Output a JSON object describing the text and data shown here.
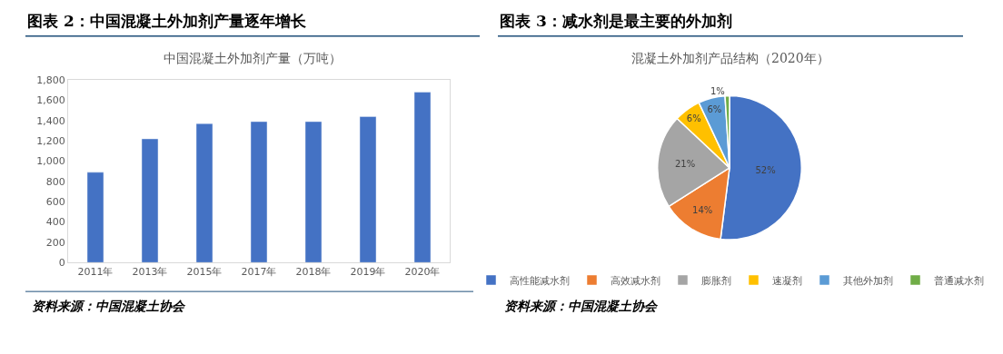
{
  "chart_data": [
    {
      "type": "bar",
      "title": "图表 2：中国混凝土外加剂产量逐年增长",
      "subtitle": "中国混凝土外加剂产量（万吨）",
      "categories": [
        "2011年",
        "2013年",
        "2015年",
        "2017年",
        "2018年",
        "2019年",
        "2020年"
      ],
      "values": [
        890,
        1220,
        1370,
        1390,
        1390,
        1440,
        1680
      ],
      "color": "#4472c4",
      "ylim": [
        0,
        1800
      ],
      "yticks": [
        0,
        200,
        400,
        600,
        800,
        {
          "value": 1000,
          "label": "1,000"
        },
        {
          "value": 1200,
          "label": "1,200"
        },
        {
          "value": 1400,
          "label": "1,400"
        },
        {
          "value": 1600,
          "label": "1,600"
        },
        {
          "value": 1800,
          "label": "1,800"
        }
      ],
      "legend": false,
      "annotations": [
        "资料来源：中国混凝土协会"
      ]
    },
    {
      "type": "pie",
      "title": "图表 3：减水剂是最主要的外加剂",
      "subtitle": "混凝土外加剂产品结构（2020年）",
      "categories": [
        "高性能减水剂",
        "高效减水剂",
        "膨胀剂",
        "速凝剂",
        "其他外加剂",
        "普通减水剂"
      ],
      "values": [
        52,
        14,
        21,
        6,
        6,
        1
      ],
      "value_labels": [
        "52%",
        "14%",
        "21%",
        "6%",
        "6%",
        "1%"
      ],
      "colors": [
        "#4472c4",
        "#ed7d31",
        "#a5a5a5",
        "#ffc000",
        "#5b9bd5",
        "#70ad47"
      ],
      "legend": "bottom",
      "annotations": [
        "资料来源：中国混凝土协会"
      ]
    }
  ]
}
